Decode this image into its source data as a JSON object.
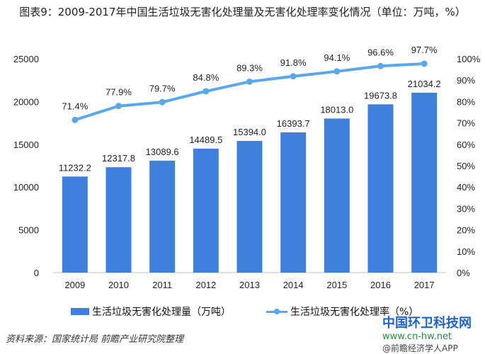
{
  "chart_data": {
    "type": "bar+line",
    "title": "图表9：2009-2017年中国生活垃圾无害化处理量及无害化处理率变化情况（单位：万吨，%）",
    "categories": [
      "2009",
      "2010",
      "2011",
      "2012",
      "2013",
      "2014",
      "2015",
      "2016",
      "2017"
    ],
    "series": [
      {
        "name": "生活垃圾无害化处理量（万吨）",
        "type": "bar",
        "axis": "left",
        "color": "#3f80dd",
        "values": [
          11232.2,
          12317.8,
          13089.6,
          14489.5,
          15394.0,
          16393.7,
          18013.0,
          19673.8,
          21034.2
        ],
        "labels": [
          "11232.2",
          "12317.8",
          "13089.6",
          "14489.5",
          "15394.0",
          "16393.7",
          "18013.0",
          "19673.8",
          "21034.2"
        ]
      },
      {
        "name": "生活垃圾无害化处理率（%）",
        "type": "line",
        "axis": "right",
        "color": "#5aa8ea",
        "values": [
          71.4,
          77.9,
          79.7,
          84.8,
          89.3,
          91.8,
          94.1,
          96.6,
          97.7
        ],
        "labels": [
          "71.4%",
          "77.9%",
          "79.7%",
          "84.8%",
          "89.3%",
          "91.8%",
          "94.1%",
          "96.6%",
          "97.7%"
        ]
      }
    ],
    "ylim_left": [
      0,
      25000
    ],
    "yticks_left": [
      "0",
      "5000",
      "10000",
      "15000",
      "20000",
      "25000"
    ],
    "ylim_right": [
      0,
      100
    ],
    "yticks_right": [
      "0%",
      "10%",
      "20%",
      "30%",
      "40%",
      "50%",
      "60%",
      "70%",
      "80%",
      "90%",
      "100%"
    ],
    "grid": false,
    "legend": "bottom"
  },
  "source": "资料来源：国家统计局 前瞻产业研究院整理",
  "watermark": {
    "name": "中国环卫科技网",
    "url": "www.cn-hw.net",
    "app": "@前瞻经济学人APP"
  }
}
